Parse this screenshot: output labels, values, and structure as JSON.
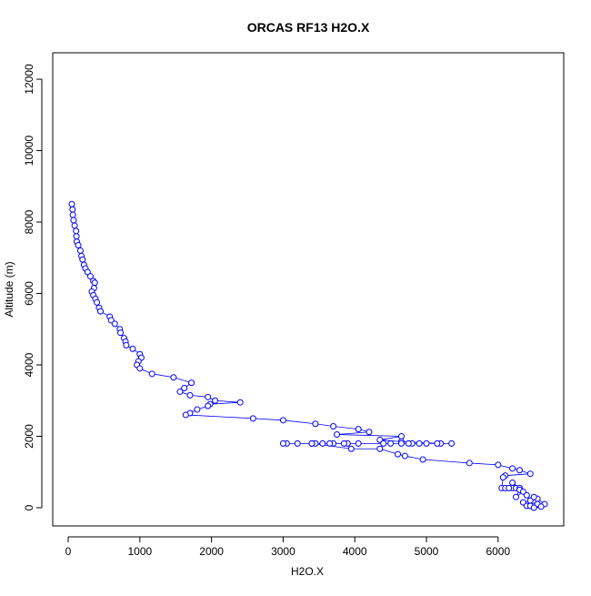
{
  "chart_data": {
    "type": "line",
    "title": "ORCAS RF13 H2O.X",
    "x_label": "H2O.X",
    "y_label": "Altitude (m)",
    "color": "#0000ff",
    "x": [
      50,
      60,
      65,
      75,
      90,
      110,
      115,
      120,
      140,
      170,
      185,
      200,
      220,
      240,
      270,
      310,
      350,
      370,
      360,
      330,
      350,
      380,
      400,
      430,
      450,
      580,
      600,
      650,
      720,
      730,
      780,
      800,
      810,
      900,
      1000,
      1020,
      980,
      960,
      1000,
      1170,
      1470,
      1720,
      1620,
      1560,
      1700,
      1950,
      2050,
      2400,
      1980,
      1950,
      1800,
      1700,
      1640,
      2580,
      3000,
      3450,
      3700,
      4050,
      4200,
      3750,
      4650,
      4350,
      4650,
      5200,
      5350,
      5150,
      4900,
      4500,
      3900,
      3450,
      3200,
      3050,
      3000,
      3400,
      3700,
      4050,
      4800,
      5000,
      4750,
      4650,
      4400,
      3850,
      3650,
      3550,
      3400,
      3950,
      4350,
      4600,
      4700,
      4950,
      5600,
      6000,
      6200,
      6300,
      6450,
      6100,
      6070,
      6050,
      6100,
      6200,
      6250,
      6150,
      6300,
      6200,
      6300,
      6250,
      6350,
      6400,
      6450,
      6350,
      6400,
      6500,
      6550,
      6650,
      6550,
      6500,
      6550,
      6450,
      6600,
      6500
    ],
    "values": [
      8500,
      8350,
      8200,
      8050,
      7900,
      7750,
      7600,
      7450,
      7350,
      7200,
      7050,
      6950,
      6800,
      6700,
      6600,
      6480,
      6350,
      6300,
      6150,
      6050,
      5950,
      5850,
      5750,
      5600,
      5500,
      5350,
      5250,
      5150,
      5000,
      4900,
      4750,
      4650,
      4550,
      4450,
      4300,
      4200,
      4100,
      4000,
      3900,
      3750,
      3650,
      3500,
      3350,
      3250,
      3150,
      3100,
      3000,
      2950,
      2900,
      2850,
      2750,
      2650,
      2600,
      2500,
      2450,
      2350,
      2280,
      2200,
      2120,
      2050,
      2000,
      1900,
      1850,
      1800,
      1800,
      1800,
      1800,
      1800,
      1800,
      1800,
      1800,
      1800,
      1800,
      1800,
      1800,
      1800,
      1800,
      1800,
      1800,
      1800,
      1800,
      1800,
      1800,
      1800,
      1800,
      1650,
      1650,
      1500,
      1450,
      1350,
      1250,
      1200,
      1100,
      1050,
      950,
      900,
      850,
      550,
      550,
      550,
      550,
      550,
      550,
      700,
      500,
      300,
      450,
      350,
      200,
      150,
      50,
      50,
      80,
      100,
      250,
      300,
      100,
      50,
      30,
      0
    ],
    "xlim": [
      -216,
      6916
    ],
    "ylim": [
      -510,
      12740
    ],
    "xticks": [
      0,
      1000,
      2000,
      3000,
      4000,
      5000,
      6000
    ],
    "yticks": [
      0,
      2000,
      4000,
      6000,
      8000,
      10000,
      12000
    ]
  }
}
